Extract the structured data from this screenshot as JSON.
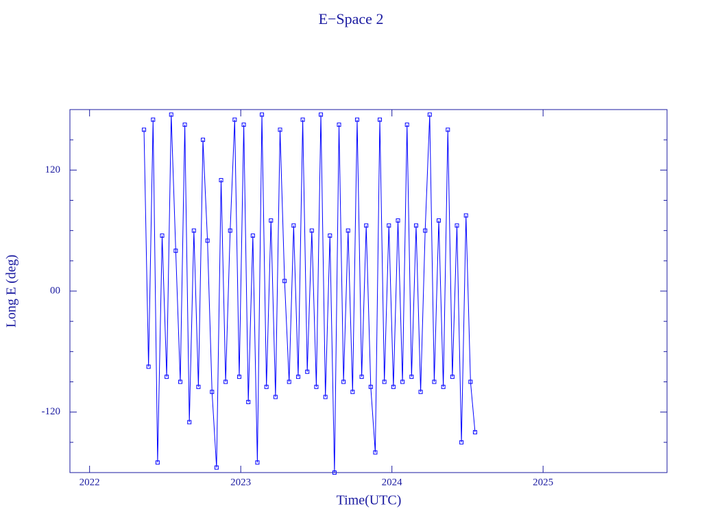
{
  "chart_data": {
    "type": "line",
    "title": "E−Space 2",
    "x_label": "Time(UTC)",
    "y_label": "Long E (deg)",
    "color": "#0000ff",
    "xlim": [
      2021.87,
      2025.82
    ],
    "xticks": [
      2022,
      2023,
      2024,
      2025
    ],
    "ylim": [
      -180,
      180
    ],
    "yticks": [
      -120,
      {
        "value": 0,
        "label": "00"
      },
      120
    ],
    "yticks_minor": [
      -150,
      -90,
      -60,
      -30,
      30,
      60,
      90,
      150
    ],
    "x": [
      2022.36,
      2022.39,
      2022.42,
      2022.45,
      2022.48,
      2022.51,
      2022.54,
      2022.57,
      2022.6,
      2022.63,
      2022.66,
      2022.69,
      2022.72,
      2022.75,
      2022.78,
      2022.81,
      2022.84,
      2022.87,
      2022.9,
      2022.93,
      2022.96,
      2022.99,
      2023.02,
      2023.05,
      2023.08,
      2023.11,
      2023.14,
      2023.17,
      2023.2,
      2023.23,
      2023.26,
      2023.29,
      2023.32,
      2023.35,
      2023.38,
      2023.41,
      2023.44,
      2023.47,
      2023.5,
      2023.53,
      2023.56,
      2023.59,
      2023.62,
      2023.65,
      2023.68,
      2023.71,
      2023.74,
      2023.77,
      2023.8,
      2023.83,
      2023.86,
      2023.89,
      2023.92,
      2023.95,
      2023.98,
      2024.01,
      2024.04,
      2024.07,
      2024.1,
      2024.13,
      2024.16,
      2024.19,
      2024.22,
      2024.25,
      2024.28,
      2024.31,
      2024.34,
      2024.37,
      2024.4,
      2024.43,
      2024.46,
      2024.49,
      2024.52,
      2024.55
    ],
    "values": [
      160,
      -75,
      170,
      -170,
      55,
      -85,
      175,
      40,
      -90,
      165,
      -130,
      60,
      -95,
      150,
      50,
      -100,
      -175,
      110,
      -90,
      60,
      170,
      -85,
      165,
      -110,
      55,
      -170,
      175,
      -95,
      70,
      -105,
      160,
      10,
      -90,
      65,
      -85,
      170,
      -80,
      60,
      -95,
      175,
      -105,
      55,
      -180,
      165,
      -90,
      60,
      -100,
      170,
      -85,
      65,
      -95,
      -160,
      170,
      -90,
      65,
      -95,
      70,
      -90,
      165,
      -85,
      65,
      -100,
      60,
      175,
      -90,
      70,
      -95,
      160,
      -85,
      65,
      -150,
      75,
      -90,
      -140
    ]
  }
}
